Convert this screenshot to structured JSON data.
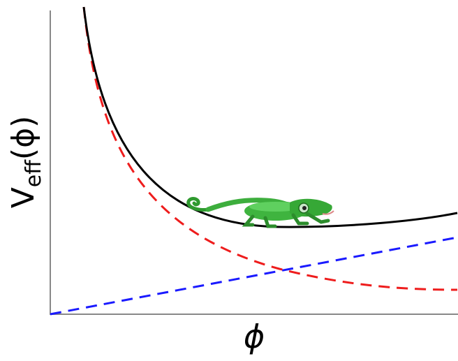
{
  "y_label": {
    "main": "V",
    "subscript": "eff",
    "argument": "(ϕ)"
  },
  "x_label": "ϕ"
}
